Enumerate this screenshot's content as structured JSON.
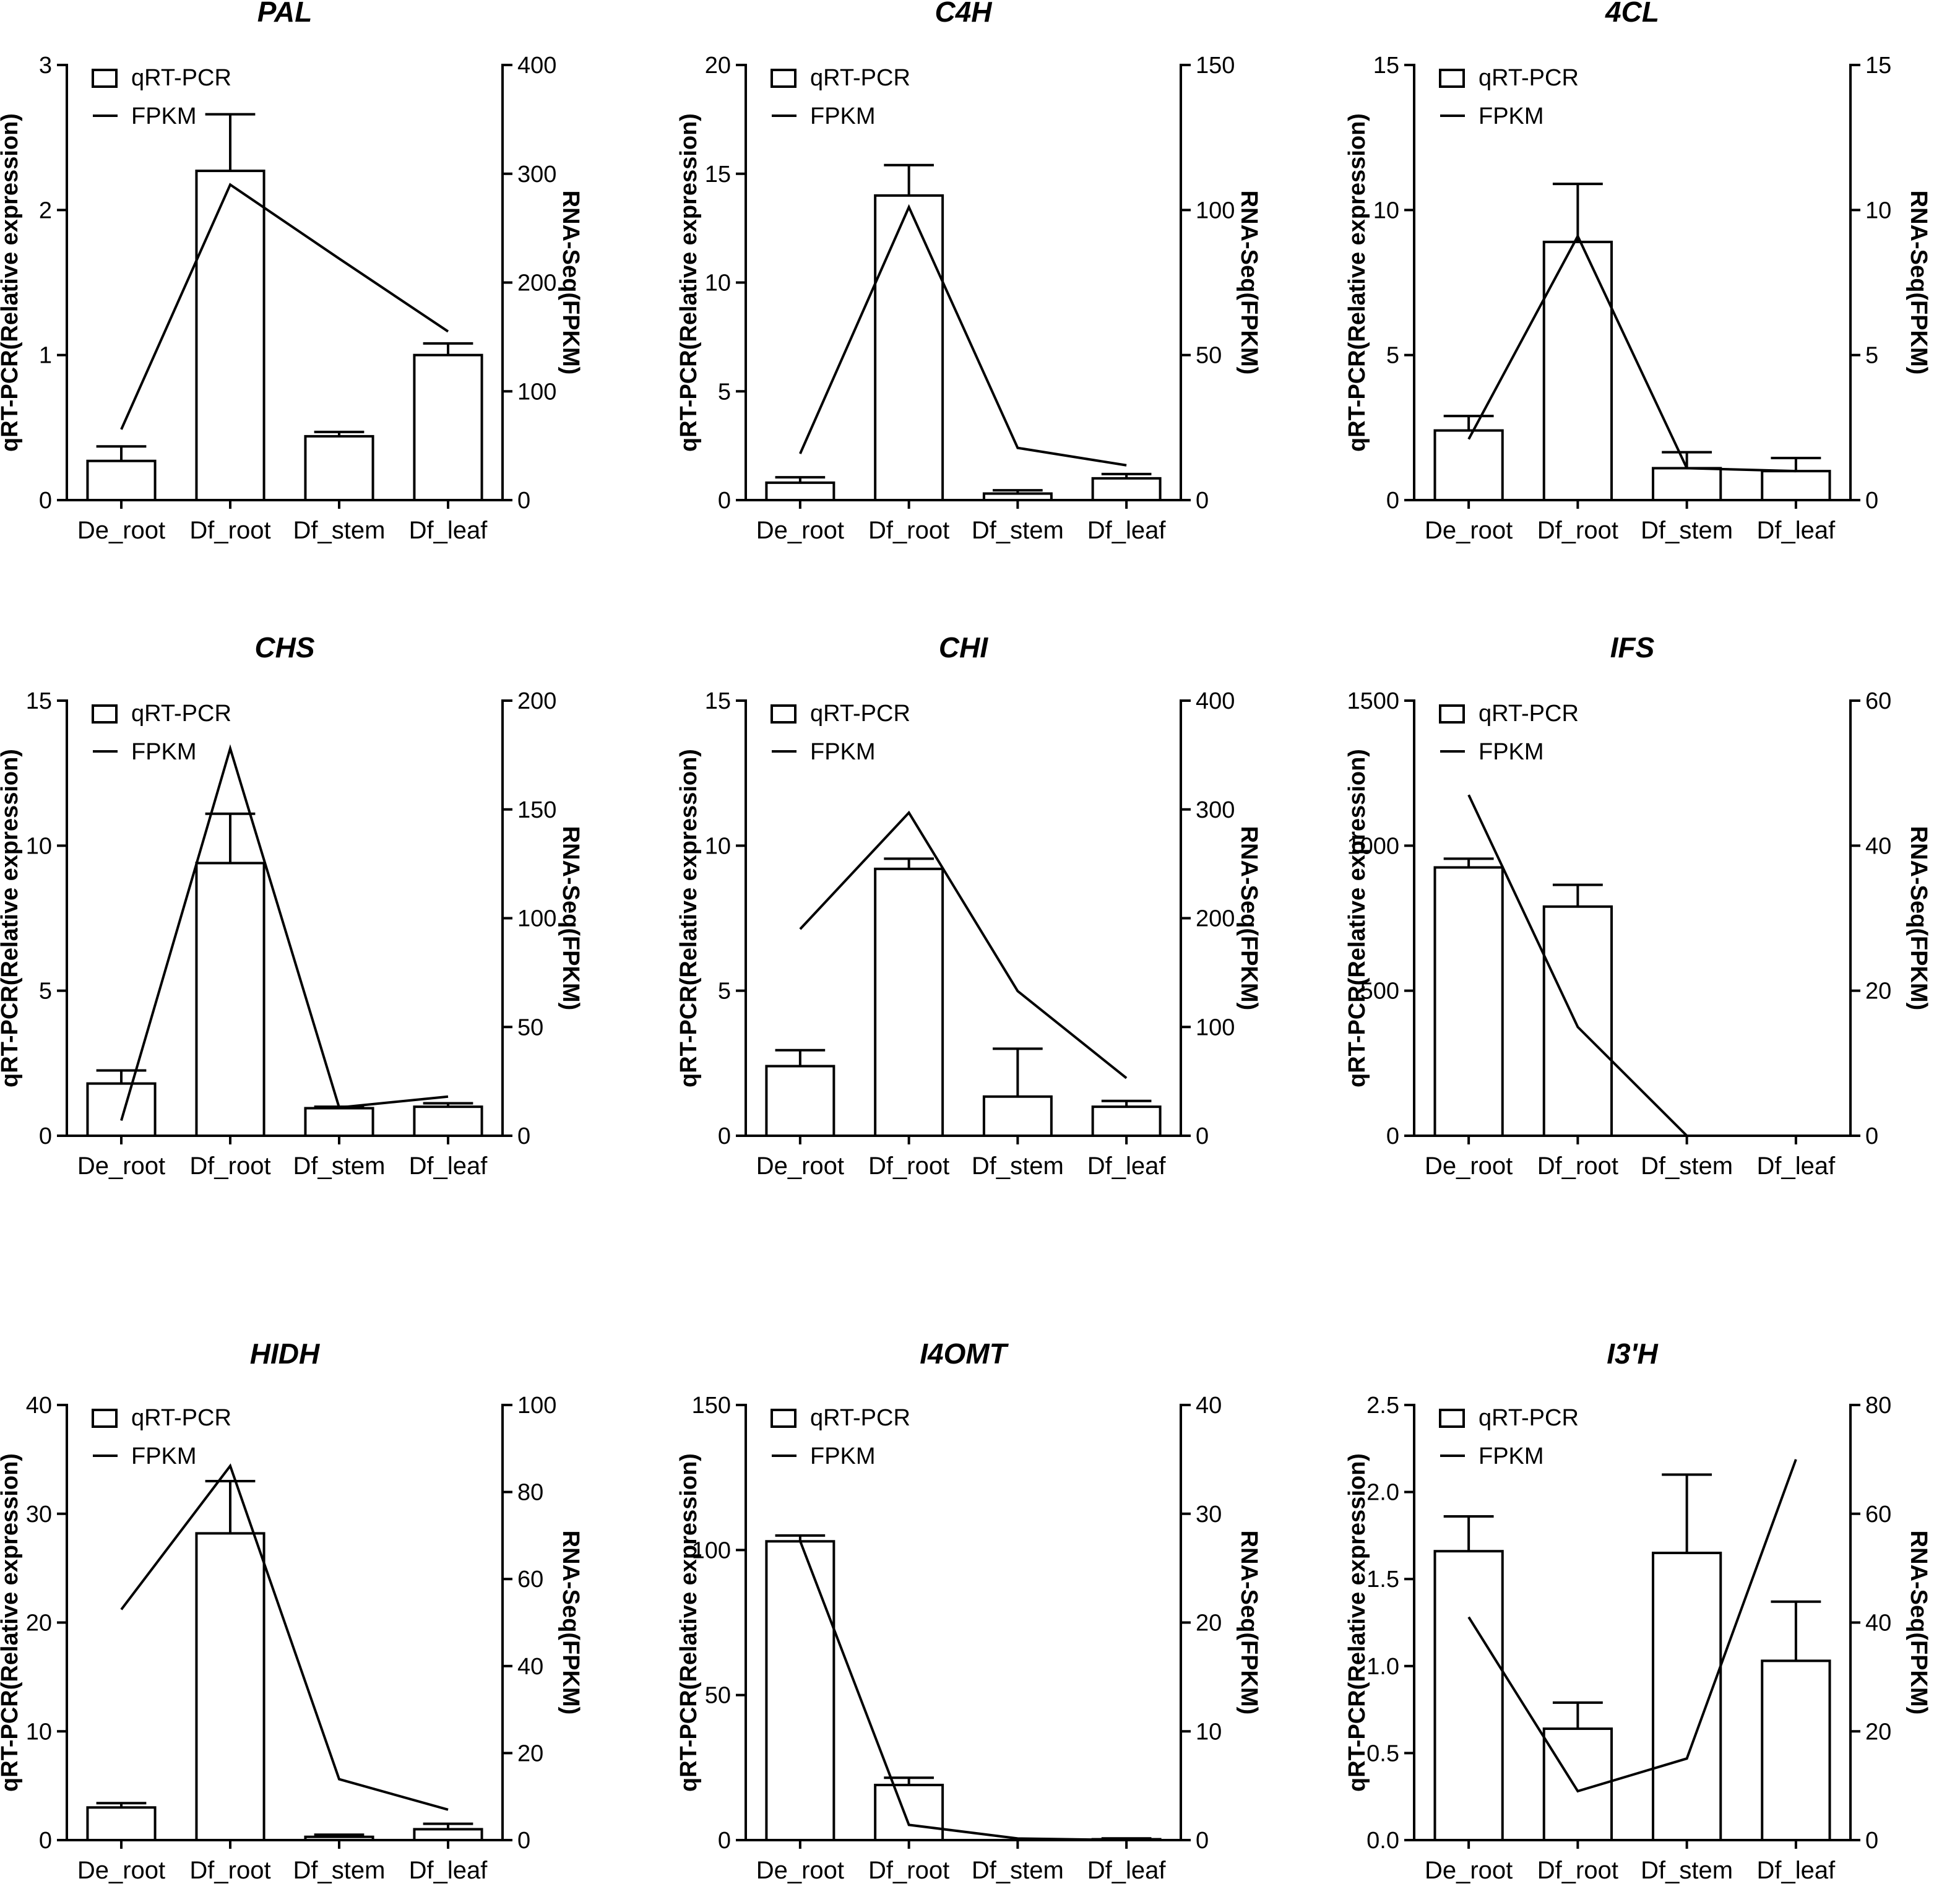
{
  "figure": {
    "background": "#ffffff",
    "stroke_color": "#000000"
  },
  "chart_data": [
    {
      "type": "bar",
      "title": "PAL",
      "categories": [
        "De_root",
        "Df_root",
        "Df_stem",
        "Df_leaf"
      ],
      "ylabel": "qRT-PCR(Relative expression)",
      "y2label": "RNA-Seq(FPKM)",
      "ylim": [
        0,
        3
      ],
      "yticks": [
        "0",
        "1",
        "2",
        "3"
      ],
      "y2lim": [
        0,
        400
      ],
      "y2ticks": [
        "0",
        "100",
        "200",
        "300",
        "400"
      ],
      "series": [
        {
          "name": "qRT-PCR",
          "kind": "bar",
          "axis": "left",
          "values": [
            0.27,
            2.27,
            0.44,
            1.0
          ],
          "errors": [
            0.1,
            0.39,
            0.03,
            0.08
          ]
        },
        {
          "name": "FPKM",
          "kind": "line",
          "axis": "right",
          "values": [
            65,
            290,
            222,
            155
          ]
        }
      ],
      "legend": [
        "qRT-PCR",
        "FPKM"
      ]
    },
    {
      "type": "bar",
      "title": "C4H",
      "categories": [
        "De_root",
        "Df_root",
        "Df_stem",
        "Df_leaf"
      ],
      "ylabel": "qRT-PCR(Relative expression)",
      "y2label": "RNA-Seq(FPKM)",
      "ylim": [
        0,
        20
      ],
      "yticks": [
        "0",
        "5",
        "10",
        "15",
        "20"
      ],
      "y2lim": [
        0,
        150
      ],
      "y2ticks": [
        "0",
        "50",
        "100",
        "150"
      ],
      "series": [
        {
          "name": "qRT-PCR",
          "kind": "bar",
          "axis": "left",
          "values": [
            0.8,
            14.0,
            0.3,
            1.0
          ],
          "errors": [
            0.25,
            1.4,
            0.15,
            0.2
          ]
        },
        {
          "name": "FPKM",
          "kind": "line",
          "axis": "right",
          "values": [
            16,
            101,
            18,
            12
          ]
        }
      ],
      "legend": [
        "qRT-PCR",
        "FPKM"
      ]
    },
    {
      "type": "bar",
      "title": "4CL",
      "categories": [
        "De_root",
        "Df_root",
        "Df_stem",
        "Df_leaf"
      ],
      "ylabel": "qRT-PCR(Relative expression)",
      "y2label": "RNA-Seq(FPKM)",
      "ylim": [
        0,
        15
      ],
      "yticks": [
        "0",
        "5",
        "10",
        "15"
      ],
      "y2lim": [
        0,
        15
      ],
      "y2ticks": [
        "0",
        "5",
        "10",
        "15"
      ],
      "series": [
        {
          "name": "qRT-PCR",
          "kind": "bar",
          "axis": "left",
          "values": [
            2.4,
            8.9,
            1.1,
            1.0
          ],
          "errors": [
            0.5,
            2.0,
            0.55,
            0.45
          ]
        },
        {
          "name": "FPKM",
          "kind": "line",
          "axis": "right",
          "values": [
            2.1,
            9.1,
            1.1,
            1.0
          ]
        }
      ],
      "legend": [
        "qRT-PCR",
        "FPKM"
      ]
    },
    {
      "type": "bar",
      "title": "CHS",
      "categories": [
        "De_root",
        "Df_root",
        "Df_stem",
        "Df_leaf"
      ],
      "ylabel": "qRT-PCR(Relative expression)",
      "y2label": "RNA-Seq(FPKM)",
      "ylim": [
        0,
        15
      ],
      "yticks": [
        "0",
        "5",
        "10",
        "15"
      ],
      "y2lim": [
        0,
        200
      ],
      "y2ticks": [
        "0",
        "50",
        "100",
        "150",
        "200"
      ],
      "series": [
        {
          "name": "qRT-PCR",
          "kind": "bar",
          "axis": "left",
          "values": [
            1.8,
            9.4,
            0.95,
            1.0
          ],
          "errors": [
            0.45,
            1.7,
            0.05,
            0.12
          ]
        },
        {
          "name": "FPKM",
          "kind": "line",
          "axis": "right",
          "values": [
            7,
            178,
            13,
            18
          ]
        }
      ],
      "legend": [
        "qRT-PCR",
        "FPKM"
      ]
    },
    {
      "type": "bar",
      "title": "CHI",
      "categories": [
        "De_root",
        "Df_root",
        "Df_stem",
        "Df_leaf"
      ],
      "ylabel": "qRT-PCR(Relative expression)",
      "y2label": "RNA-Seq(FPKM)",
      "ylim": [
        0,
        15
      ],
      "yticks": [
        "0",
        "5",
        "10",
        "15"
      ],
      "y2lim": [
        0,
        400
      ],
      "y2ticks": [
        "0",
        "100",
        "200",
        "300",
        "400"
      ],
      "series": [
        {
          "name": "qRT-PCR",
          "kind": "bar",
          "axis": "left",
          "values": [
            2.4,
            9.2,
            1.35,
            1.0
          ],
          "errors": [
            0.55,
            0.35,
            1.65,
            0.2
          ]
        },
        {
          "name": "FPKM",
          "kind": "line",
          "axis": "right",
          "values": [
            190,
            297,
            133,
            53
          ]
        }
      ],
      "legend": [
        "qRT-PCR",
        "FPKM"
      ]
    },
    {
      "type": "bar",
      "title": "IFS",
      "categories": [
        "De_root",
        "Df_root",
        "Df_stem",
        "Df_leaf"
      ],
      "ylabel": "qRT-PCR(Relative expression)",
      "y2label": "RNA-Seq(FPKM)",
      "ylim": [
        0,
        1500
      ],
      "yticks": [
        "0",
        "500",
        "1000",
        "1500"
      ],
      "y2lim": [
        0,
        60
      ],
      "y2ticks": [
        "0",
        "20",
        "40",
        "60"
      ],
      "series": [
        {
          "name": "qRT-PCR",
          "kind": "bar",
          "axis": "left",
          "values": [
            925,
            790,
            0,
            0
          ],
          "errors": [
            30,
            75,
            0,
            0
          ]
        },
        {
          "name": "FPKM",
          "kind": "line",
          "axis": "right",
          "values": [
            47,
            15,
            0,
            null
          ]
        }
      ],
      "legend": [
        "qRT-PCR",
        "FPKM"
      ]
    },
    {
      "type": "bar",
      "title": "HIDH",
      "categories": [
        "De_root",
        "Df_root",
        "Df_stem",
        "Df_leaf"
      ],
      "ylabel": "qRT-PCR(Relative expression)",
      "y2label": "RNA-Seq(FPKM)",
      "ylim": [
        0,
        40
      ],
      "yticks": [
        "0",
        "10",
        "20",
        "30",
        "40"
      ],
      "y2lim": [
        0,
        100
      ],
      "y2ticks": [
        "0",
        "20",
        "40",
        "60",
        "80",
        "100"
      ],
      "series": [
        {
          "name": "qRT-PCR",
          "kind": "bar",
          "axis": "left",
          "values": [
            3.0,
            28.2,
            0.3,
            1.0
          ],
          "errors": [
            0.4,
            4.8,
            0.2,
            0.5
          ]
        },
        {
          "name": "FPKM",
          "kind": "line",
          "axis": "right",
          "values": [
            53,
            86,
            14,
            7
          ]
        }
      ],
      "legend": [
        "qRT-PCR",
        "FPKM"
      ]
    },
    {
      "type": "bar",
      "title": "I4OMT",
      "categories": [
        "De_root",
        "Df_root",
        "Df_stem",
        "Df_leaf"
      ],
      "ylabel": "qRT-PCR(Relative expression)",
      "y2label": "RNA-Seq(FPKM)",
      "ylim": [
        0,
        150
      ],
      "yticks": [
        "0",
        "50",
        "100",
        "150"
      ],
      "y2lim": [
        0,
        40
      ],
      "y2ticks": [
        "0",
        "10",
        "20",
        "30",
        "40"
      ],
      "series": [
        {
          "name": "qRT-PCR",
          "kind": "bar",
          "axis": "left",
          "values": [
            103,
            19,
            0,
            0.3
          ],
          "errors": [
            2,
            2.5,
            0,
            0.3
          ]
        },
        {
          "name": "FPKM",
          "kind": "line",
          "axis": "right",
          "values": [
            27.5,
            1.4,
            0.15,
            0
          ]
        }
      ],
      "legend": [
        "qRT-PCR",
        "FPKM"
      ]
    },
    {
      "type": "bar",
      "title": "I3'H",
      "categories": [
        "De_root",
        "Df_root",
        "Df_stem",
        "Df_leaf"
      ],
      "ylabel": "qRT-PCR(Relative expression)",
      "y2label": "RNA-Seq(FPKM)",
      "ylim": [
        0,
        2.5
      ],
      "yticks": [
        "0.0",
        "0.5",
        "1.0",
        "1.5",
        "2.0",
        "2.5"
      ],
      "y2lim": [
        0,
        80
      ],
      "y2ticks": [
        "0",
        "20",
        "40",
        "60",
        "80"
      ],
      "series": [
        {
          "name": "qRT-PCR",
          "kind": "bar",
          "axis": "left",
          "values": [
            1.66,
            0.64,
            1.65,
            1.03
          ],
          "errors": [
            0.2,
            0.15,
            0.45,
            0.34
          ]
        },
        {
          "name": "FPKM",
          "kind": "line",
          "axis": "right",
          "values": [
            41,
            9,
            15,
            70
          ]
        }
      ],
      "legend": [
        "qRT-PCR",
        "FPKM"
      ]
    }
  ]
}
